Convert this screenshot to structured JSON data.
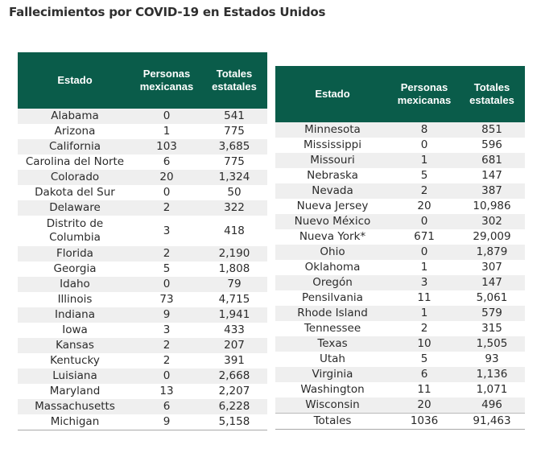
{
  "title": "Fallecimientos por COVID-19 en Estados Unidos",
  "colors": {
    "header_bg": "#0a5c4a",
    "header_text": "#ffffff",
    "stripe": "#efefef"
  },
  "headers": {
    "estado": "Estado",
    "personas_1": "Personas",
    "personas_2": "mexicanas",
    "totales_1": "Totales",
    "totales_2": "estatales"
  },
  "left_table": {
    "rows": [
      {
        "estado": "Alabama",
        "mexicanas": "0",
        "totales": "541"
      },
      {
        "estado": "Arizona",
        "mexicanas": "1",
        "totales": "775"
      },
      {
        "estado": "California",
        "mexicanas": "103",
        "totales": "3,685"
      },
      {
        "estado": "Carolina del Norte",
        "mexicanas": "6",
        "totales": "775"
      },
      {
        "estado": "Colorado",
        "mexicanas": "20",
        "totales": "1,324"
      },
      {
        "estado": "Dakota del Sur",
        "mexicanas": "0",
        "totales": "50"
      },
      {
        "estado": "Delaware",
        "mexicanas": "2",
        "totales": "322"
      },
      {
        "estado": "Distrito de Columbia",
        "mexicanas": "3",
        "totales": "418"
      },
      {
        "estado": "Florida",
        "mexicanas": "2",
        "totales": "2,190"
      },
      {
        "estado": "Georgia",
        "mexicanas": "5",
        "totales": "1,808"
      },
      {
        "estado": "Idaho",
        "mexicanas": "0",
        "totales": "79"
      },
      {
        "estado": "Illinois",
        "mexicanas": "73",
        "totales": "4,715"
      },
      {
        "estado": "Indiana",
        "mexicanas": "9",
        "totales": "1,941"
      },
      {
        "estado": "Iowa",
        "mexicanas": "3",
        "totales": "433"
      },
      {
        "estado": "Kansas",
        "mexicanas": "2",
        "totales": "207"
      },
      {
        "estado": "Kentucky",
        "mexicanas": "2",
        "totales": "391"
      },
      {
        "estado": "Luisiana",
        "mexicanas": "0",
        "totales": "2,668"
      },
      {
        "estado": "Maryland",
        "mexicanas": "13",
        "totales": "2,207"
      },
      {
        "estado": "Massachusetts",
        "mexicanas": "6",
        "totales": "6,228"
      },
      {
        "estado": "Michigan",
        "mexicanas": "9",
        "totales": "5,158"
      }
    ]
  },
  "right_table": {
    "rows": [
      {
        "estado": "Minnesota",
        "mexicanas": "8",
        "totales": "851"
      },
      {
        "estado": "Mississippi",
        "mexicanas": "0",
        "totales": "596"
      },
      {
        "estado": "Missouri",
        "mexicanas": "1",
        "totales": "681"
      },
      {
        "estado": "Nebraska",
        "mexicanas": "5",
        "totales": "147"
      },
      {
        "estado": "Nevada",
        "mexicanas": "2",
        "totales": "387"
      },
      {
        "estado": "Nueva Jersey",
        "mexicanas": "20",
        "totales": "10,986"
      },
      {
        "estado": "Nuevo México",
        "mexicanas": "0",
        "totales": "302"
      },
      {
        "estado": "Nueva York*",
        "mexicanas": "671",
        "totales": "29,009"
      },
      {
        "estado": "Ohio",
        "mexicanas": "0",
        "totales": "1,879"
      },
      {
        "estado": "Oklahoma",
        "mexicanas": "1",
        "totales": "307"
      },
      {
        "estado": "Oregón",
        "mexicanas": "3",
        "totales": "147"
      },
      {
        "estado": "Pensilvania",
        "mexicanas": "11",
        "totales": "5,061"
      },
      {
        "estado": "Rhode Island",
        "mexicanas": "1",
        "totales": "579"
      },
      {
        "estado": "Tennessee",
        "mexicanas": "2",
        "totales": "315"
      },
      {
        "estado": "Texas",
        "mexicanas": "10",
        "totales": "1,505"
      },
      {
        "estado": "Utah",
        "mexicanas": "5",
        "totales": "93"
      },
      {
        "estado": "Virginia",
        "mexicanas": "6",
        "totales": "1,136"
      },
      {
        "estado": "Washington",
        "mexicanas": "11",
        "totales": "1,071"
      },
      {
        "estado": "Wisconsin",
        "mexicanas": "20",
        "totales": "496"
      }
    ],
    "total": {
      "estado": "Totales",
      "mexicanas": "1036",
      "totales": "91,463"
    }
  }
}
